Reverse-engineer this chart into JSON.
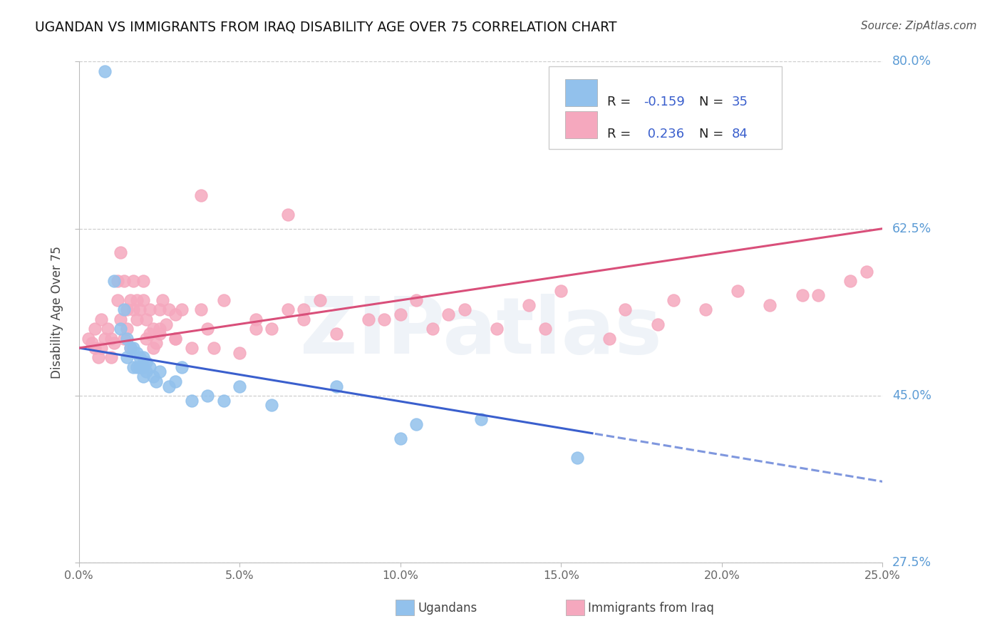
{
  "title": "UGANDAN VS IMMIGRANTS FROM IRAQ DISABILITY AGE OVER 75 CORRELATION CHART",
  "source": "Source: ZipAtlas.com",
  "ylabel": "Disability Age Over 75",
  "xlim": [
    0.0,
    25.0
  ],
  "ylim": [
    27.5,
    80.0
  ],
  "ytick_vals": [
    27.5,
    45.0,
    62.5,
    80.0
  ],
  "ytick_labels": [
    "27.5%",
    "45.0%",
    "62.5%",
    "80.0%"
  ],
  "xtick_vals": [
    0.0,
    5.0,
    10.0,
    15.0,
    20.0,
    25.0
  ],
  "xtick_labels": [
    "0.0%",
    "5.0%",
    "10.0%",
    "15.0%",
    "20.0%",
    "25.0%"
  ],
  "ugandan_N": 35,
  "iraq_N": 84,
  "ugandan_dot_color": "#92C1EC",
  "iraq_dot_color": "#F5A8BE",
  "ugandan_line_color": "#3A5FCD",
  "iraq_line_color": "#D94F7A",
  "watermark": "ZIPatlas",
  "legend_R_color": "#3A5FCD",
  "legend_N_color": "#3A5FCD",
  "bg_color": "#FFFFFF",
  "grid_color": "#CCCCCC",
  "right_label_color": "#5B9BD5",
  "source_color": "#555555",
  "title_color": "#111111",
  "axis_label_color": "#444444",
  "tick_color": "#666666",
  "bottom_label_color": "#444444",
  "ugandan_x": [
    0.8,
    1.1,
    1.3,
    1.4,
    1.5,
    1.5,
    1.6,
    1.7,
    1.7,
    1.8,
    1.8,
    1.9,
    1.9,
    2.0,
    2.0,
    2.0,
    2.1,
    2.1,
    2.2,
    2.3,
    2.4,
    2.5,
    2.8,
    3.0,
    3.2,
    3.5,
    4.0,
    4.5,
    5.0,
    6.0,
    8.0,
    10.5,
    12.5,
    15.5,
    10.0
  ],
  "ugandan_y": [
    79.0,
    57.0,
    52.0,
    54.0,
    51.0,
    49.0,
    50.0,
    50.0,
    48.0,
    49.5,
    48.0,
    49.0,
    48.0,
    49.0,
    48.0,
    47.0,
    48.5,
    47.5,
    48.0,
    47.0,
    46.5,
    47.5,
    46.0,
    46.5,
    48.0,
    44.5,
    45.0,
    44.5,
    46.0,
    44.0,
    46.0,
    42.0,
    42.5,
    38.5,
    40.5
  ],
  "iraq_x": [
    0.3,
    0.4,
    0.5,
    0.5,
    0.6,
    0.7,
    0.7,
    0.8,
    0.9,
    1.0,
    1.0,
    1.1,
    1.2,
    1.2,
    1.3,
    1.3,
    1.4,
    1.4,
    1.5,
    1.5,
    1.6,
    1.6,
    1.7,
    1.7,
    1.8,
    1.8,
    1.9,
    2.0,
    2.0,
    2.1,
    2.1,
    2.2,
    2.2,
    2.3,
    2.3,
    2.4,
    2.5,
    2.5,
    2.6,
    2.7,
    2.8,
    3.0,
    3.0,
    3.2,
    3.5,
    3.8,
    4.0,
    4.5,
    5.0,
    5.5,
    6.0,
    6.5,
    7.0,
    7.5,
    8.0,
    9.0,
    10.0,
    11.0,
    12.0,
    13.0,
    14.0,
    15.0,
    16.5,
    17.0,
    18.0,
    19.5,
    20.5,
    21.5,
    23.0,
    24.0,
    2.5,
    3.0,
    5.5,
    7.0,
    9.5,
    11.5,
    14.5,
    18.5,
    22.5,
    24.5,
    3.8,
    4.2,
    6.5,
    10.5
  ],
  "iraq_y": [
    51.0,
    50.5,
    50.0,
    52.0,
    49.0,
    53.0,
    50.0,
    51.0,
    52.0,
    49.0,
    51.0,
    50.5,
    55.0,
    57.0,
    60.0,
    53.0,
    57.0,
    51.0,
    52.0,
    54.0,
    55.0,
    50.0,
    57.0,
    54.0,
    55.0,
    53.0,
    54.0,
    55.0,
    57.0,
    53.0,
    51.0,
    51.5,
    54.0,
    50.0,
    52.0,
    50.5,
    52.0,
    54.0,
    55.0,
    52.5,
    54.0,
    51.0,
    53.5,
    54.0,
    50.0,
    54.0,
    52.0,
    55.0,
    49.5,
    52.0,
    52.0,
    54.0,
    53.0,
    55.0,
    51.5,
    53.0,
    53.5,
    52.0,
    54.0,
    52.0,
    54.5,
    56.0,
    51.0,
    54.0,
    52.5,
    54.0,
    56.0,
    54.5,
    55.5,
    57.0,
    51.5,
    51.0,
    53.0,
    54.0,
    53.0,
    53.5,
    52.0,
    55.0,
    55.5,
    58.0,
    66.0,
    50.0,
    64.0,
    55.0
  ],
  "ug_line_x0": 0.0,
  "ug_line_y0": 50.0,
  "ug_line_x1": 25.0,
  "ug_line_y1": 36.0,
  "ug_line_solid_end": 16.0,
  "iq_line_x0": 0.0,
  "iq_line_y0": 50.0,
  "iq_line_x1": 25.0,
  "iq_line_y1": 62.5
}
